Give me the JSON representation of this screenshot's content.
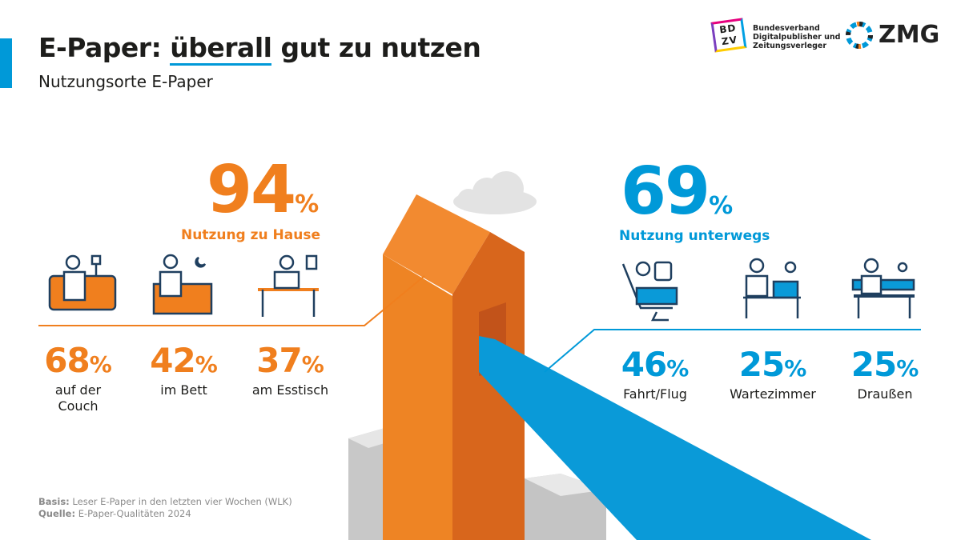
{
  "header": {
    "title_pre": "E-Paper: ",
    "title_underlined": "überall",
    "title_post": " gut zu nutzen",
    "subtitle": "Nutzungsorte E-Paper"
  },
  "logos": {
    "bdzv_mark": "BDZV",
    "bdzv_text": [
      "Bundesverband",
      "Digitalpublisher und",
      "Zeitungsverleger"
    ],
    "zmg": "ZMG"
  },
  "home": {
    "value": "94",
    "unit": "%",
    "label": "Nutzung zu Hause",
    "color": "#f07f1e",
    "items": [
      {
        "value": "68",
        "unit": "%",
        "label": "auf der Couch",
        "icon": "couch-reader-icon"
      },
      {
        "value": "42",
        "unit": "%",
        "label": "im Bett",
        "icon": "bed-reader-icon"
      },
      {
        "value": "37",
        "unit": "%",
        "label": "am Esstisch",
        "icon": "table-laptop-icon"
      }
    ]
  },
  "away": {
    "value": "69",
    "unit": "%",
    "label": "Nutzung unterwegs",
    "color": "#0099d8",
    "items": [
      {
        "value": "46",
        "unit": "%",
        "label": "Fahrt/Flug",
        "icon": "seat-travel-icon"
      },
      {
        "value": "25",
        "unit": "%",
        "label": "Wartezimmer",
        "icon": "waiting-room-icon"
      },
      {
        "value": "25",
        "unit": "%",
        "label": "Draußen",
        "icon": "bench-outdoor-icon"
      }
    ]
  },
  "footer": {
    "basis_label": "Basis:",
    "basis": " Leser E-Paper in den letzten vier Wochen (WLK)",
    "source_label": "Quelle:",
    "source": " E-Paper-Qualitäten 2024"
  }
}
